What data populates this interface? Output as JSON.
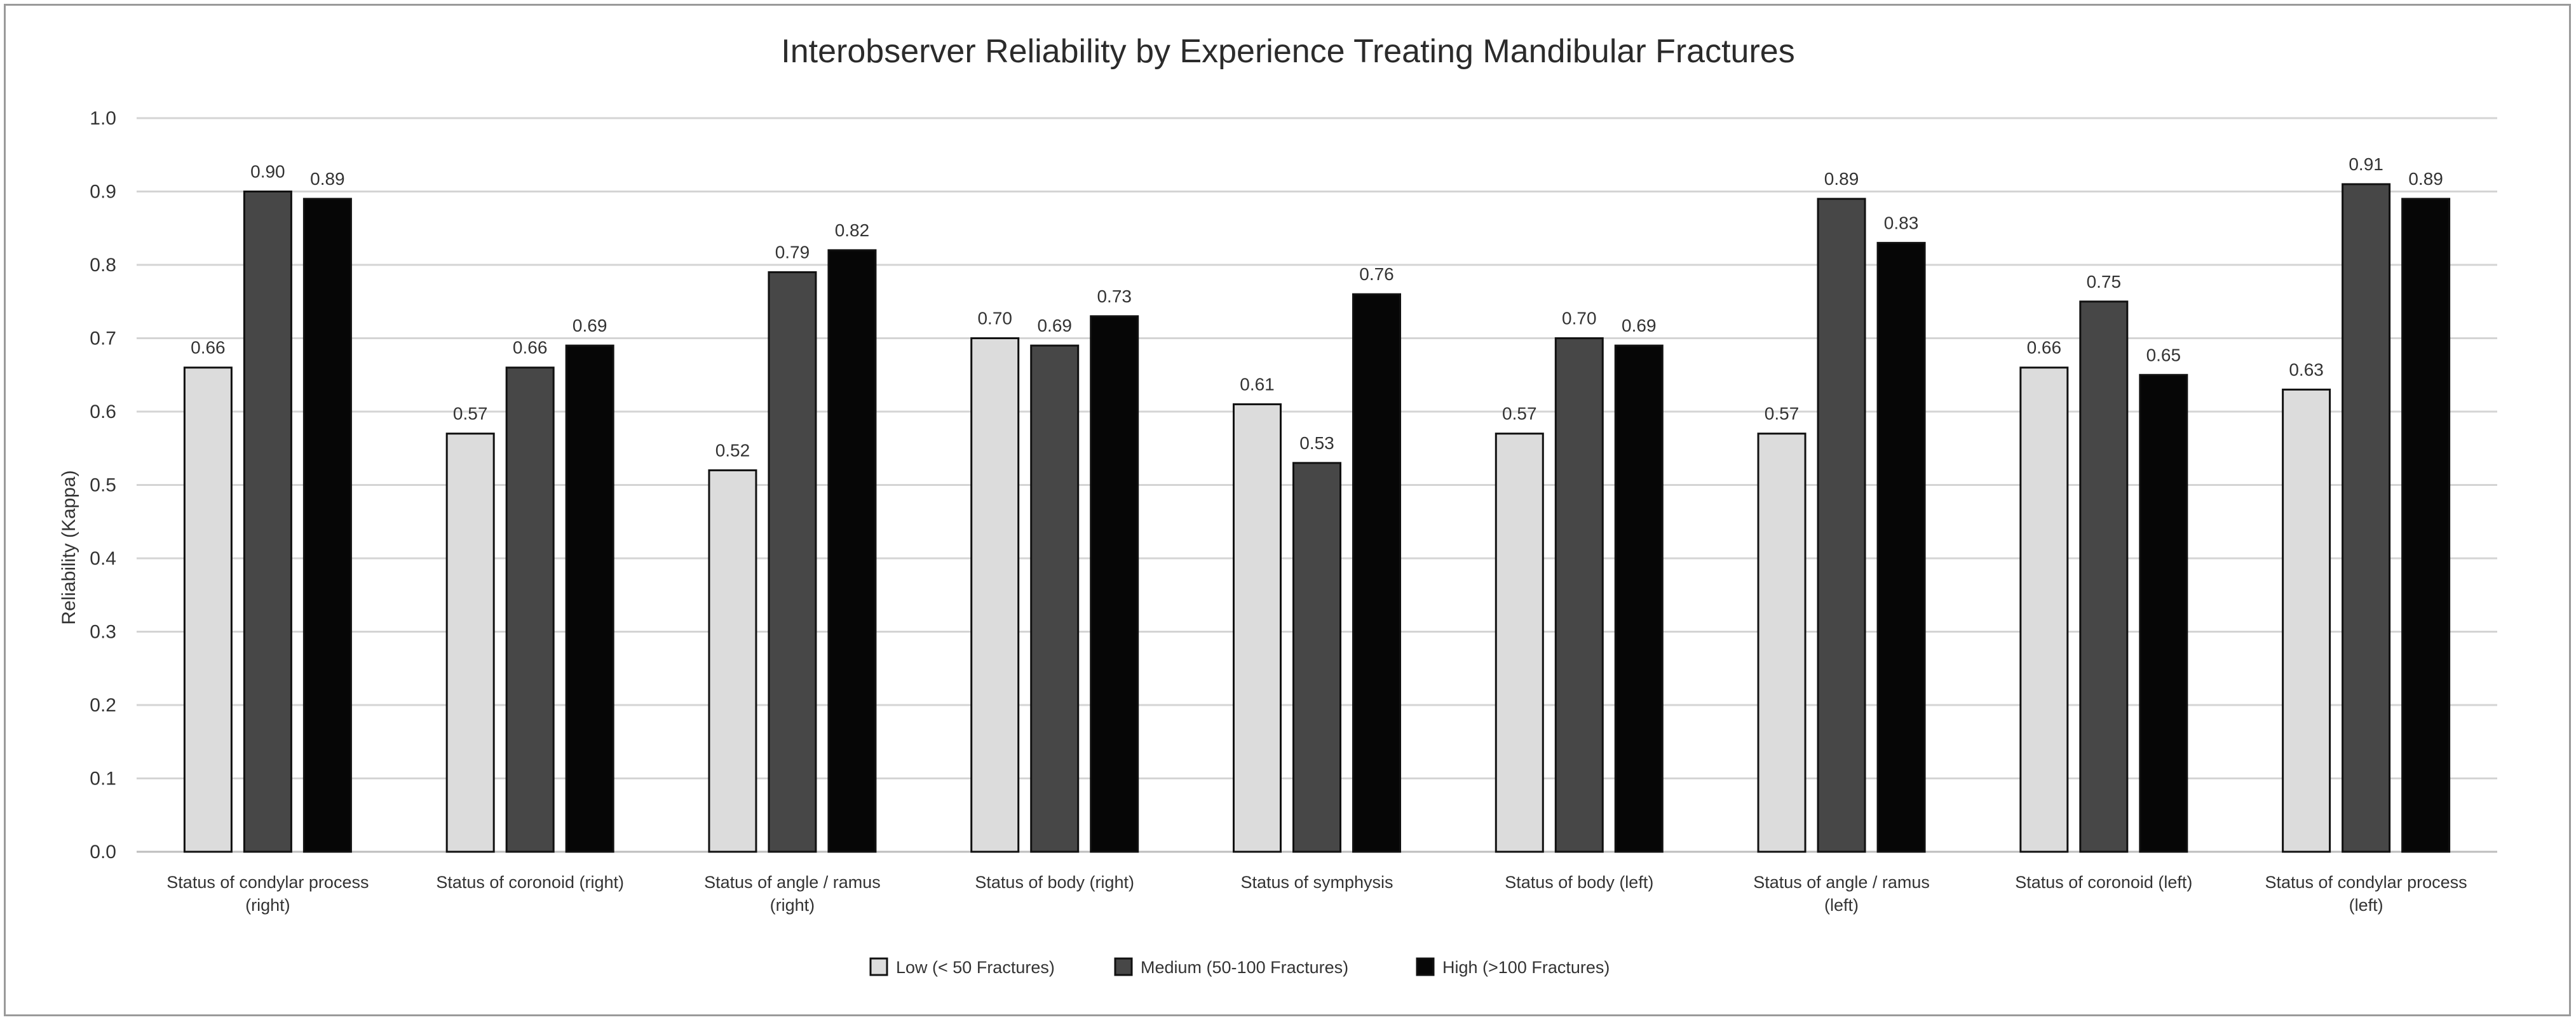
{
  "chart_data": {
    "type": "bar",
    "title": "Interobserver Reliability by Experience Treating Mandibular Fractures",
    "xlabel": "",
    "ylabel": "Reliability (Kappa)",
    "ylim": [
      0,
      1.0
    ],
    "yticks": [
      "0.0",
      "0.1",
      "0.2",
      "0.3",
      "0.4",
      "0.5",
      "0.6",
      "0.7",
      "0.8",
      "0.9",
      "1.0"
    ],
    "grid": true,
    "legend_position": "bottom",
    "categories": [
      [
        "Status of condylar process",
        "(right)"
      ],
      [
        "Status of coronoid (right)"
      ],
      [
        "Status of angle / ramus",
        "(right)"
      ],
      [
        "Status of body (right)"
      ],
      [
        "Status of symphysis"
      ],
      [
        "Status of body (left)"
      ],
      [
        "Status of angle / ramus",
        "(left)"
      ],
      [
        "Status of coronoid (left)"
      ],
      [
        "Status of condylar process",
        "(left)"
      ]
    ],
    "series": [
      {
        "name": "Low (< 50 Fractures)",
        "color": "#dcdcdc",
        "values": [
          0.66,
          0.57,
          0.52,
          0.7,
          0.61,
          0.57,
          0.57,
          0.66,
          0.63
        ],
        "labels": [
          "0.66",
          "0.57",
          "0.52",
          "0.70",
          "0.61",
          "0.57",
          "0.57",
          "0.66",
          "0.63"
        ]
      },
      {
        "name": "Medium (50-100 Fractures)",
        "color": "#474747",
        "values": [
          0.9,
          0.66,
          0.79,
          0.69,
          0.53,
          0.7,
          0.89,
          0.75,
          0.91
        ],
        "labels": [
          "0.90",
          "0.66",
          "0.79",
          "0.69",
          "0.53",
          "0.70",
          "0.89",
          "0.75",
          "0.91"
        ]
      },
      {
        "name": "High (>100 Fractures)",
        "color": "#060606",
        "values": [
          0.89,
          0.69,
          0.82,
          0.73,
          0.76,
          0.69,
          0.83,
          0.65,
          0.89
        ],
        "labels": [
          "0.89",
          "0.69",
          "0.82",
          "0.73",
          "0.76",
          "0.69",
          "0.83",
          "0.65",
          "0.89"
        ]
      }
    ]
  }
}
